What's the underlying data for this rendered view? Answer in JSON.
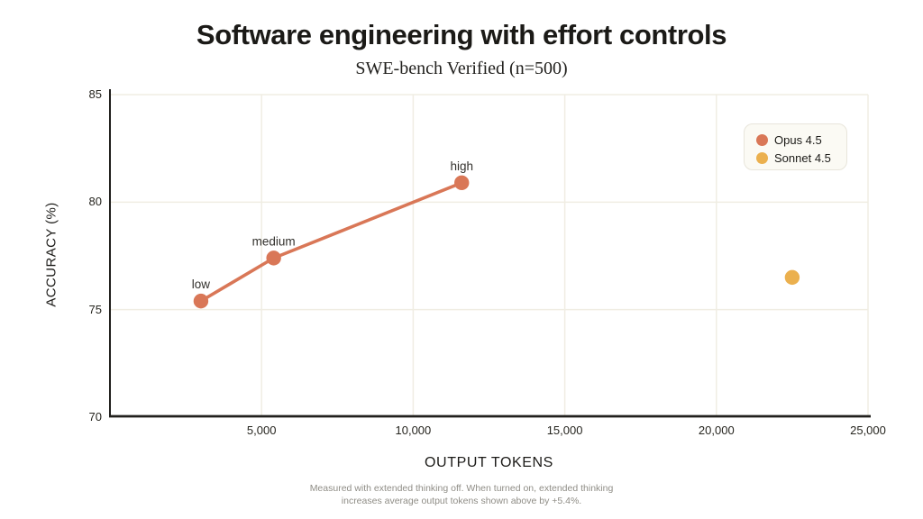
{
  "header": {
    "title": "Software engineering with effort controls",
    "subtitle": "SWE-bench Verified (n=500)"
  },
  "chart_data": {
    "type": "line",
    "title": "Software engineering with effort controls",
    "subtitle": "SWE-bench Verified (n=500)",
    "xlabel": "OUTPUT TOKENS",
    "ylabel": "ACCURACY (%)",
    "xlim": [
      0,
      25000
    ],
    "ylim": [
      70,
      85
    ],
    "grid": true,
    "x_ticks": [
      {
        "value": 5000,
        "label": "5,000"
      },
      {
        "value": 10000,
        "label": "10,000"
      },
      {
        "value": 15000,
        "label": "15,000"
      },
      {
        "value": 20000,
        "label": "20,000"
      },
      {
        "value": 25000,
        "label": "25,000"
      }
    ],
    "y_ticks": [
      {
        "value": 70,
        "label": "70"
      },
      {
        "value": 75,
        "label": "75"
      },
      {
        "value": 80,
        "label": "80"
      },
      {
        "value": 85,
        "label": "85"
      }
    ],
    "legend": {
      "position": "top-right",
      "entries": [
        {
          "label": "Opus 4.5",
          "color": "#D97757"
        },
        {
          "label": "Sonnet 4.5",
          "color": "#EBB04E"
        }
      ]
    },
    "series": [
      {
        "name": "Opus 4.5",
        "color": "#D97757",
        "mode": "line+markers",
        "points": [
          {
            "x": 3000,
            "y": 75.4,
            "label": "low"
          },
          {
            "x": 5400,
            "y": 77.4,
            "label": "medium"
          },
          {
            "x": 11600,
            "y": 80.9,
            "label": "high"
          }
        ]
      },
      {
        "name": "Sonnet 4.5",
        "color": "#EBB04E",
        "mode": "markers",
        "points": [
          {
            "x": 22500,
            "y": 76.5,
            "label": ""
          }
        ]
      }
    ],
    "colors": {
      "grid": "#f0ede3",
      "axis": "#21201d",
      "point_label": "#33312d"
    },
    "footnote_lines": [
      "Measured with extended thinking off. When turned on, extended thinking",
      "increases average output tokens shown above by +5.4%."
    ]
  }
}
